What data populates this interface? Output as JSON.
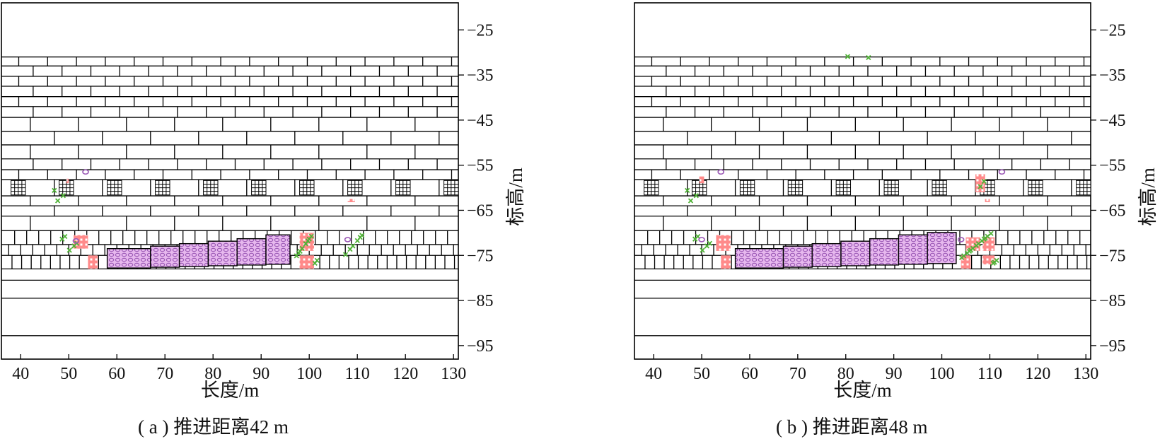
{
  "panels": [
    {
      "id": "a",
      "caption": "( a ) 推进距离42 m",
      "xlabel": "长度/m",
      "ylabel": "标高/m",
      "x_range": [
        36,
        131
      ],
      "y_range": [
        -98,
        -19
      ],
      "x_ticks": [
        40,
        50,
        60,
        70,
        80,
        90,
        100,
        110,
        120,
        130
      ],
      "y_ticks": [
        -25,
        -35,
        -45,
        -55,
        -65,
        -75,
        -85,
        -95
      ],
      "y_tick_labels": [
        "−25",
        "−35",
        "−45",
        "−55",
        "−65",
        "−75",
        "−85",
        "−95"
      ],
      "goaf_blocks": [
        [
          58,
          67
        ],
        [
          67,
          73
        ],
        [
          73,
          79
        ],
        [
          79,
          85
        ],
        [
          85,
          91
        ],
        [
          91,
          96
        ]
      ],
      "pink_clusters": [
        [
          51,
          70.5,
          54,
          73.5
        ],
        [
          54,
          75,
          56,
          78
        ],
        [
          98,
          70,
          101,
          74
        ],
        [
          98,
          75,
          101,
          78
        ],
        [
          49.5,
          58,
          50,
          59
        ],
        [
          108,
          62.5,
          109.5,
          63.2
        ]
      ],
      "green_clusters": [
        [
          47,
          60,
          50,
          63
        ],
        [
          48,
          70,
          52,
          74
        ],
        [
          97,
          70,
          102,
          77
        ],
        [
          107,
          70,
          111,
          75
        ]
      ],
      "purple_marks": [
        [
          53.5,
          56.5
        ],
        [
          51.5,
          71.8
        ],
        [
          108,
          71.5
        ]
      ]
    },
    {
      "id": "b",
      "caption": "( b ) 推进距离48 m",
      "xlabel": "长度/m",
      "ylabel": "标高/m",
      "x_range": [
        36,
        131
      ],
      "y_range": [
        -98,
        -19
      ],
      "x_ticks": [
        40,
        50,
        60,
        70,
        80,
        90,
        100,
        110,
        120,
        130
      ],
      "y_ticks": [
        -25,
        -35,
        -45,
        -55,
        -65,
        -75,
        -85,
        -95
      ],
      "y_tick_labels": [
        "−25",
        "−35",
        "−45",
        "−55",
        "−65",
        "−75",
        "−85",
        "−95"
      ],
      "goaf_blocks": [
        [
          57,
          67
        ],
        [
          67,
          73
        ],
        [
          73,
          79
        ],
        [
          79,
          85
        ],
        [
          85,
          91
        ],
        [
          91,
          97
        ],
        [
          97,
          103
        ]
      ],
      "pink_clusters": [
        [
          53,
          70.5,
          56,
          74
        ],
        [
          54,
          75,
          56,
          78
        ],
        [
          49.5,
          57.5,
          50.5,
          59
        ],
        [
          107,
          57,
          109,
          61
        ],
        [
          105,
          71,
          108,
          74
        ],
        [
          104,
          75,
          106,
          78
        ],
        [
          108.5,
          71,
          111,
          74
        ],
        [
          108.5,
          75,
          111,
          77
        ],
        [
          109,
          62.5,
          110,
          63.2
        ]
      ],
      "green_clusters": [
        [
          47,
          60,
          50,
          63
        ],
        [
          48,
          70,
          52,
          74
        ],
        [
          104,
          70,
          112,
          77
        ],
        [
          107,
          58,
          109,
          61
        ],
        [
          79,
          30.8,
          86,
          31.4
        ]
      ],
      "purple_marks": [
        [
          54,
          56.5
        ],
        [
          112.5,
          56.5
        ],
        [
          104,
          71.5
        ],
        [
          50,
          71.5
        ]
      ]
    }
  ]
}
